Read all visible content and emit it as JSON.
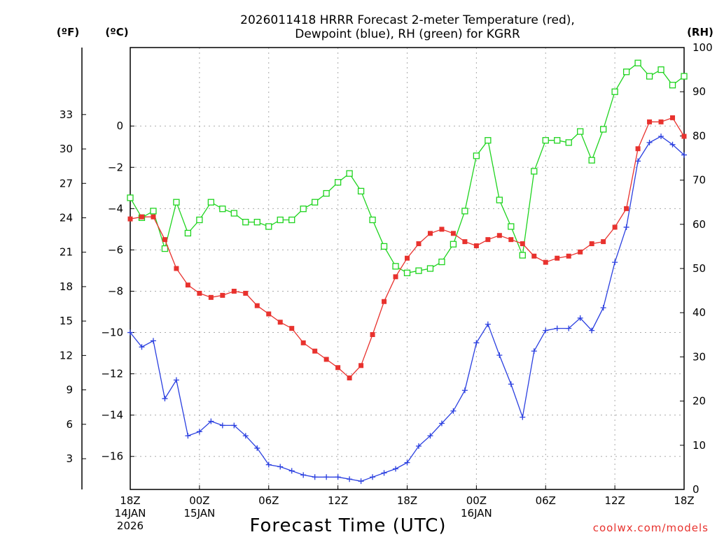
{
  "title_line1": "2026011418 HRRR Forecast 2-meter Temperature (red),",
  "title_line2": "Dewpoint (blue), RH (green) for KGRR",
  "unit_f": "(ºF)",
  "unit_c": "(ºC)",
  "unit_rh": "(RH)",
  "credit": "coolwx.com/models",
  "colors": {
    "temperature": "#e8322e",
    "dewpoint": "#2a3fe0",
    "rh": "#1fd41f",
    "grid": "#aaaaaa",
    "credit": "#e8322e"
  },
  "chart_data": {
    "type": "line",
    "title": "2026011418 HRRR Forecast 2-meter Temperature (red), Dewpoint (blue), RH (green) for KGRR",
    "xlabel": "Forecast Time (UTC)",
    "ylabel_left": "(ºC)",
    "ylabel_left_outer": "(ºF)",
    "ylabel_right": "(RH)",
    "x_range_hours": [
      0,
      48
    ],
    "x_ticks": [
      {
        "hour": 0,
        "lines": [
          "18Z",
          "14JAN",
          "2026"
        ]
      },
      {
        "hour": 6,
        "lines": [
          "00Z",
          "15JAN"
        ]
      },
      {
        "hour": 12,
        "lines": [
          "06Z"
        ]
      },
      {
        "hour": 18,
        "lines": [
          "12Z"
        ]
      },
      {
        "hour": 24,
        "lines": [
          "18Z"
        ]
      },
      {
        "hour": 30,
        "lines": [
          "00Z",
          "16JAN"
        ]
      },
      {
        "hour": 36,
        "lines": [
          "06Z"
        ]
      },
      {
        "hour": 42,
        "lines": [
          "12Z"
        ]
      },
      {
        "hour": 48,
        "lines": [
          "18Z"
        ]
      }
    ],
    "y_left_range_c": [
      -17.6,
      3.8
    ],
    "y_left_ticks_c": [
      "0",
      "−2",
      "−4",
      "−6",
      "−8",
      "−10",
      "−12",
      "−14",
      "−16"
    ],
    "y_left_ticks_f": [
      "33",
      "30",
      "27",
      "24",
      "21",
      "18",
      "15",
      "12",
      "9",
      "6",
      "3"
    ],
    "y_right_range": [
      0,
      100
    ],
    "y_right_ticks": [
      "100",
      "90",
      "80",
      "70",
      "60",
      "50",
      "40",
      "30",
      "20",
      "10",
      "0"
    ],
    "grid": true,
    "series": [
      {
        "name": "Temperature",
        "unit": "C",
        "color": "#e8322e",
        "marker": "filled-square",
        "values": [
          -4.5,
          -4.4,
          -4.4,
          -5.5,
          -6.9,
          -7.7,
          -8.1,
          -8.3,
          -8.2,
          -8.0,
          -8.1,
          -8.7,
          -9.1,
          -9.5,
          -9.8,
          -10.5,
          -10.9,
          -11.3,
          -11.7,
          -12.2,
          -11.6,
          -10.1,
          -8.5,
          -7.3,
          -6.4,
          -5.7,
          -5.2,
          -5.0,
          -5.2,
          -5.6,
          -5.8,
          -5.5,
          -5.3,
          -5.5,
          -5.7,
          -6.3,
          -6.6,
          -6.4,
          -6.3,
          -6.1,
          -5.7,
          -5.6,
          -4.9,
          -4.0,
          -1.1,
          0.2,
          0.2,
          0.4,
          -0.5
        ]
      },
      {
        "name": "Dewpoint",
        "unit": "C",
        "color": "#2a3fe0",
        "marker": "plus",
        "values": [
          -10.0,
          -10.7,
          -10.4,
          -13.2,
          -12.3,
          -15.0,
          -14.8,
          -14.3,
          -14.5,
          -14.5,
          -15.0,
          -15.6,
          -16.4,
          -16.5,
          -16.7,
          -16.9,
          -17.0,
          -17.0,
          -17.0,
          -17.1,
          -17.2,
          -17.0,
          -16.8,
          -16.6,
          -16.3,
          -15.5,
          -15.0,
          -14.4,
          -13.8,
          -12.8,
          -10.5,
          -9.6,
          -11.1,
          -12.5,
          -14.1,
          -10.9,
          -9.9,
          -9.8,
          -9.8,
          -9.3,
          -9.9,
          -8.8,
          -6.6,
          -4.9,
          -1.7,
          -0.8,
          -0.5,
          -0.9,
          -1.4
        ]
      },
      {
        "name": "RH",
        "unit": "%",
        "color": "#1fd41f",
        "marker": "open-square",
        "values": [
          66,
          61.5,
          63,
          54.5,
          65,
          58,
          61,
          65,
          63.5,
          62.5,
          60.5,
          60.5,
          59.5,
          61,
          61,
          63.5,
          65,
          67,
          69.5,
          71.5,
          67.5,
          61,
          55,
          50.5,
          49,
          49.5,
          50,
          51.5,
          55.5,
          63,
          75.5,
          79,
          65.5,
          59.5,
          53,
          72,
          79,
          79,
          78.5,
          81,
          74.5,
          81.5,
          90,
          94.5,
          96.5,
          93.5,
          95,
          91.5,
          93.5
        ]
      }
    ]
  }
}
